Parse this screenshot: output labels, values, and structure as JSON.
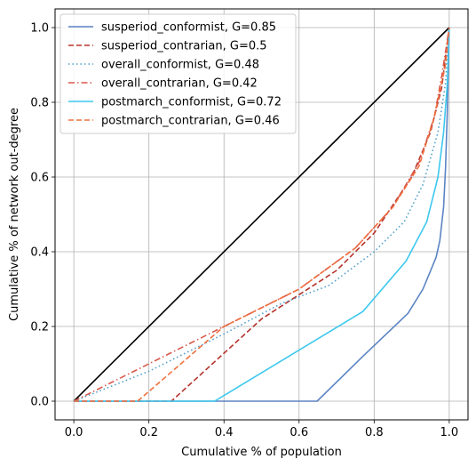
{
  "chart_data": {
    "type": "line",
    "title": "",
    "xlabel": "Cumulative % of population",
    "ylabel": "Cumulative % of network out-degree",
    "xlim": [
      -0.05,
      1.05
    ],
    "ylim": [
      -0.05,
      1.05
    ],
    "xticks": [
      0.0,
      0.2,
      0.4,
      0.6,
      0.8,
      1.0
    ],
    "yticks": [
      0.0,
      0.2,
      0.4,
      0.6,
      0.8,
      1.0
    ],
    "xtick_labels": [
      "0.0",
      "0.2",
      "0.4",
      "0.6",
      "0.8",
      "1.0"
    ],
    "ytick_labels": [
      "0.0",
      "0.2",
      "0.4",
      "0.6",
      "0.8",
      "1.0"
    ],
    "grid": true,
    "legend_position": "upper-left",
    "equality_line": {
      "color": "#000000",
      "points": [
        [
          0,
          0
        ],
        [
          1,
          1
        ]
      ]
    },
    "series": [
      {
        "name": "susperiod_conformist, G=0.85",
        "color": "#5b84c4",
        "dash": "solid",
        "points": [
          [
            0,
            0
          ],
          [
            0.648,
            0
          ],
          [
            0.77,
            0.12
          ],
          [
            0.89,
            0.235
          ],
          [
            0.93,
            0.3
          ],
          [
            0.965,
            0.385
          ],
          [
            0.975,
            0.43
          ],
          [
            0.985,
            0.52
          ],
          [
            0.99,
            0.62
          ],
          [
            0.995,
            0.78
          ],
          [
            1.0,
            1.0
          ]
        ]
      },
      {
        "name": "susperiod_contrarian, G=0.5",
        "color": "#b5332c",
        "dash": "dashed",
        "points": [
          [
            0,
            0
          ],
          [
            0.26,
            0
          ],
          [
            0.5,
            0.22
          ],
          [
            0.7,
            0.35
          ],
          [
            0.8,
            0.45
          ],
          [
            0.9,
            0.6
          ],
          [
            0.95,
            0.72
          ],
          [
            0.98,
            0.84
          ],
          [
            1.0,
            1.0
          ]
        ]
      },
      {
        "name": "overall_conformist, G=0.48",
        "color": "#4e9ec9",
        "dash": "dotted",
        "points": [
          [
            0,
            0
          ],
          [
            0.2,
            0.08
          ],
          [
            0.4,
            0.18
          ],
          [
            0.55,
            0.26
          ],
          [
            0.68,
            0.31
          ],
          [
            0.8,
            0.4
          ],
          [
            0.88,
            0.48
          ],
          [
            0.93,
            0.58
          ],
          [
            0.97,
            0.72
          ],
          [
            0.99,
            0.85
          ],
          [
            1.0,
            1.0
          ]
        ]
      },
      {
        "name": "overall_contrarian, G=0.42",
        "color": "#d9594c",
        "dash": "dashdot",
        "points": [
          [
            0,
            0
          ],
          [
            0.2,
            0.1
          ],
          [
            0.4,
            0.2
          ],
          [
            0.6,
            0.3
          ],
          [
            0.75,
            0.41
          ],
          [
            0.85,
            0.52
          ],
          [
            0.92,
            0.64
          ],
          [
            0.96,
            0.76
          ],
          [
            0.98,
            0.87
          ],
          [
            1.0,
            1.0
          ]
        ]
      },
      {
        "name": "postmarch_conformist, G=0.72",
        "color": "#3ec8ee",
        "dash": "solid",
        "points": [
          [
            0,
            0
          ],
          [
            0.375,
            0
          ],
          [
            0.77,
            0.24
          ],
          [
            0.885,
            0.375
          ],
          [
            0.94,
            0.48
          ],
          [
            0.97,
            0.6
          ],
          [
            0.985,
            0.72
          ],
          [
            0.995,
            0.85
          ],
          [
            1.0,
            1.0
          ]
        ]
      },
      {
        "name": "postmarch_contrarian, G=0.46",
        "color": "#f0703e",
        "dash": "dashed",
        "points": [
          [
            0,
            0
          ],
          [
            0.17,
            0
          ],
          [
            0.4,
            0.2
          ],
          [
            0.6,
            0.3
          ],
          [
            0.75,
            0.41
          ],
          [
            0.85,
            0.52
          ],
          [
            0.92,
            0.63
          ],
          [
            0.96,
            0.76
          ],
          [
            0.99,
            0.9
          ],
          [
            1.0,
            1.0
          ]
        ]
      }
    ]
  }
}
